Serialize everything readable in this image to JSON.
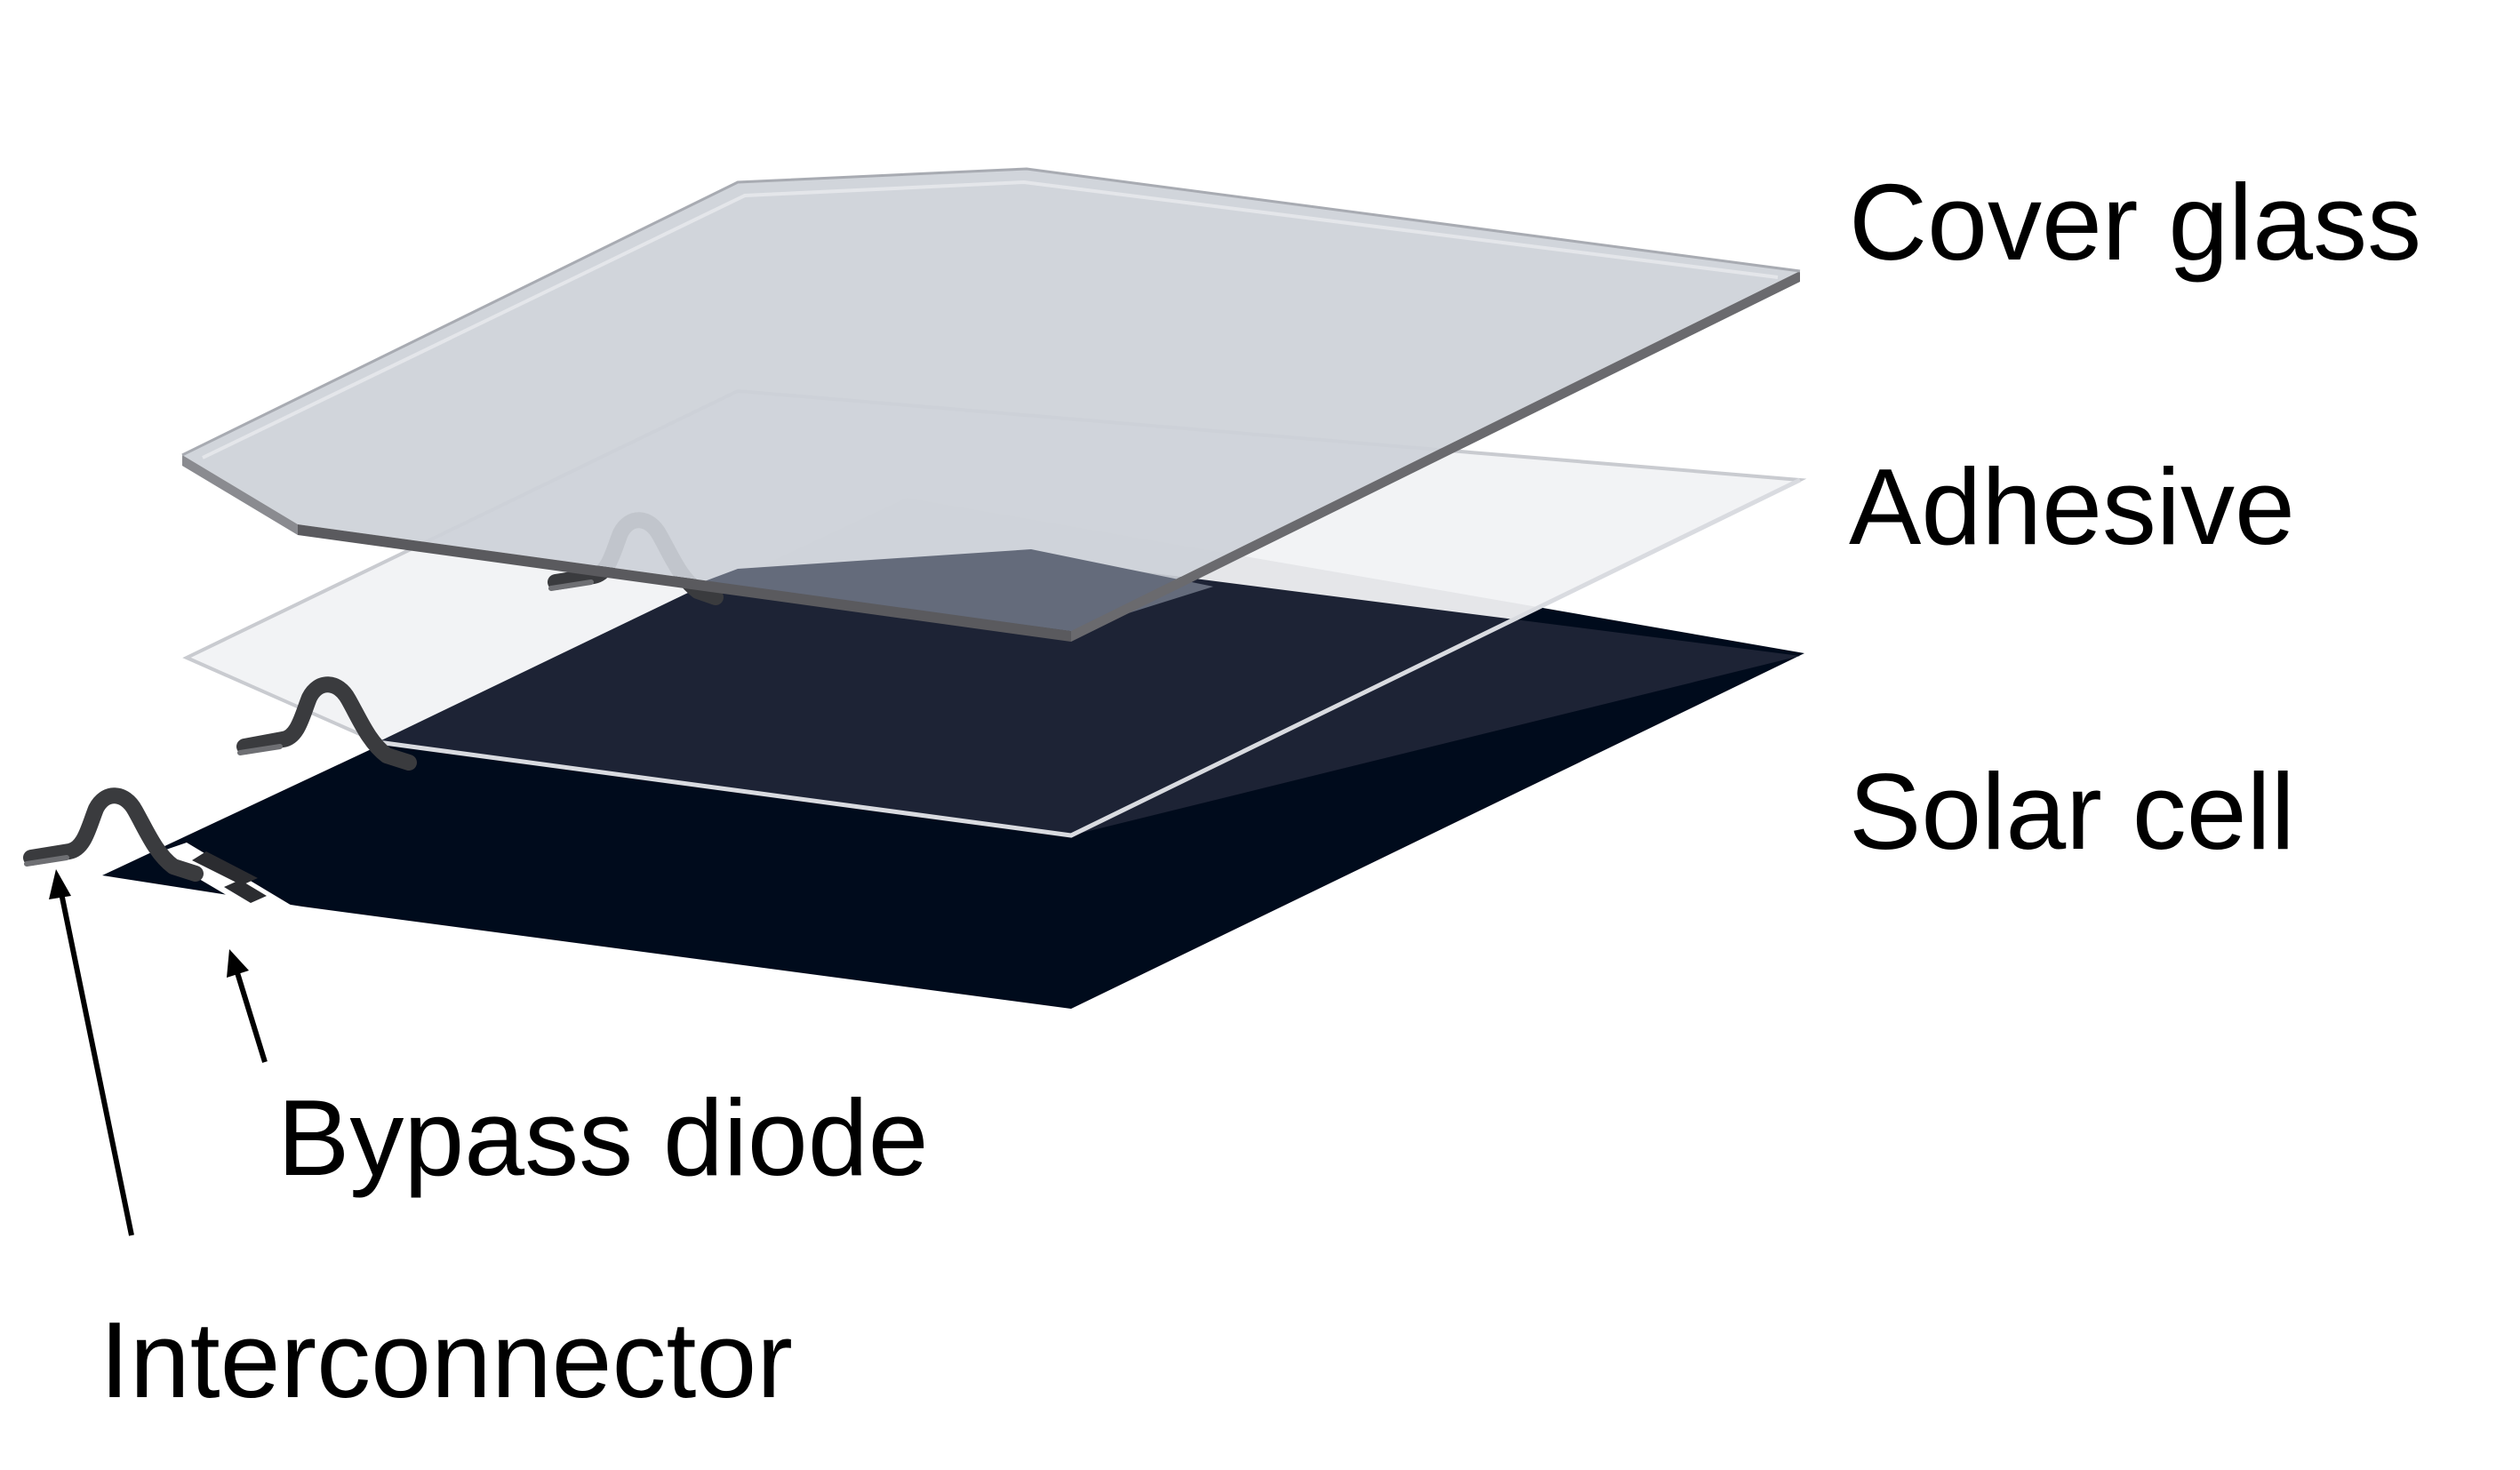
{
  "labels": {
    "cover_glass": "Cover glass",
    "adhesive": "Adhesive",
    "solar_cell": "Solar cell",
    "bypass_diode": "Bypass diode",
    "interconnector": "Interconnector"
  },
  "colors": {
    "cover_glass_top": "#cdd1d8",
    "cover_glass_edge": "#5a5a5e",
    "adhesive": "#f0f1f3",
    "solar_cell": "#000b1c",
    "interconnector": "#3a3b3e",
    "text": "#000000",
    "background": "#ffffff"
  }
}
